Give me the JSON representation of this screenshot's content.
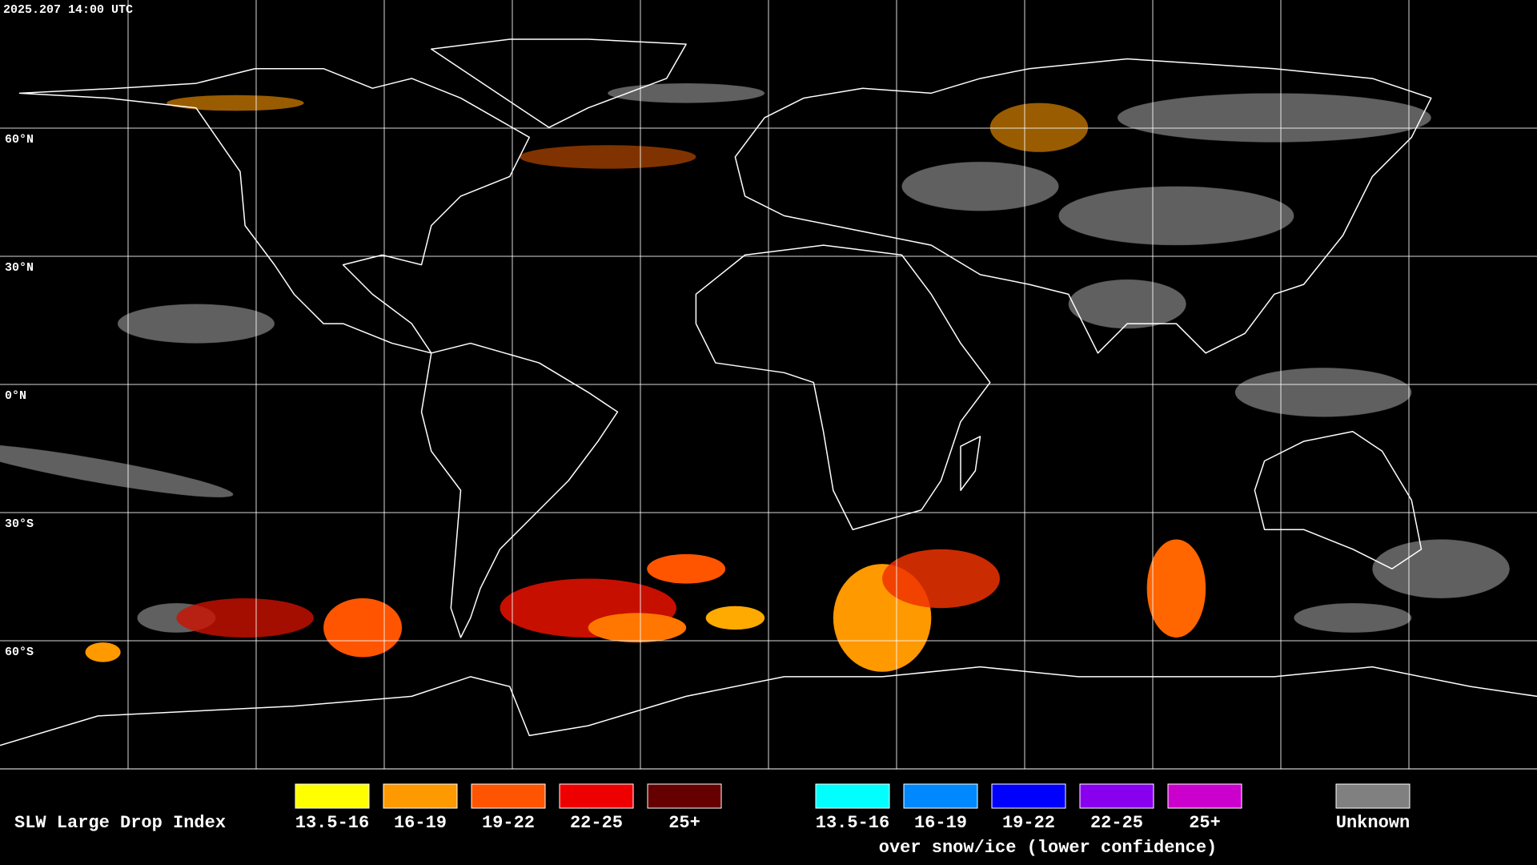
{
  "timestamp": "2025.207 14:00 UTC",
  "map": {
    "latitude_labels": [
      "60°N",
      "30°N",
      "0°N",
      "30°S",
      "60°S"
    ]
  },
  "legend": {
    "title": "SLW Large Drop Index",
    "items": [
      {
        "label": "13.5-16",
        "color": "#ffff00"
      },
      {
        "label": "16-19",
        "color": "#ff9900"
      },
      {
        "label": "19-22",
        "color": "#ff5500"
      },
      {
        "label": "22-25",
        "color": "#ee0000"
      },
      {
        "label": "25+",
        "color": "#660000"
      }
    ],
    "snow_ice_items": [
      {
        "label": "13.5-16",
        "color": "#00ffff"
      },
      {
        "label": "16-19",
        "color": "#0088ff"
      },
      {
        "label": "19-22",
        "color": "#0000ff"
      },
      {
        "label": "22-25",
        "color": "#8800ee"
      },
      {
        "label": "25+",
        "color": "#cc00cc"
      }
    ],
    "snow_ice_caption": "over snow/ice (lower confidence)",
    "unknown": {
      "label": "Unknown",
      "color": "#808080"
    }
  }
}
